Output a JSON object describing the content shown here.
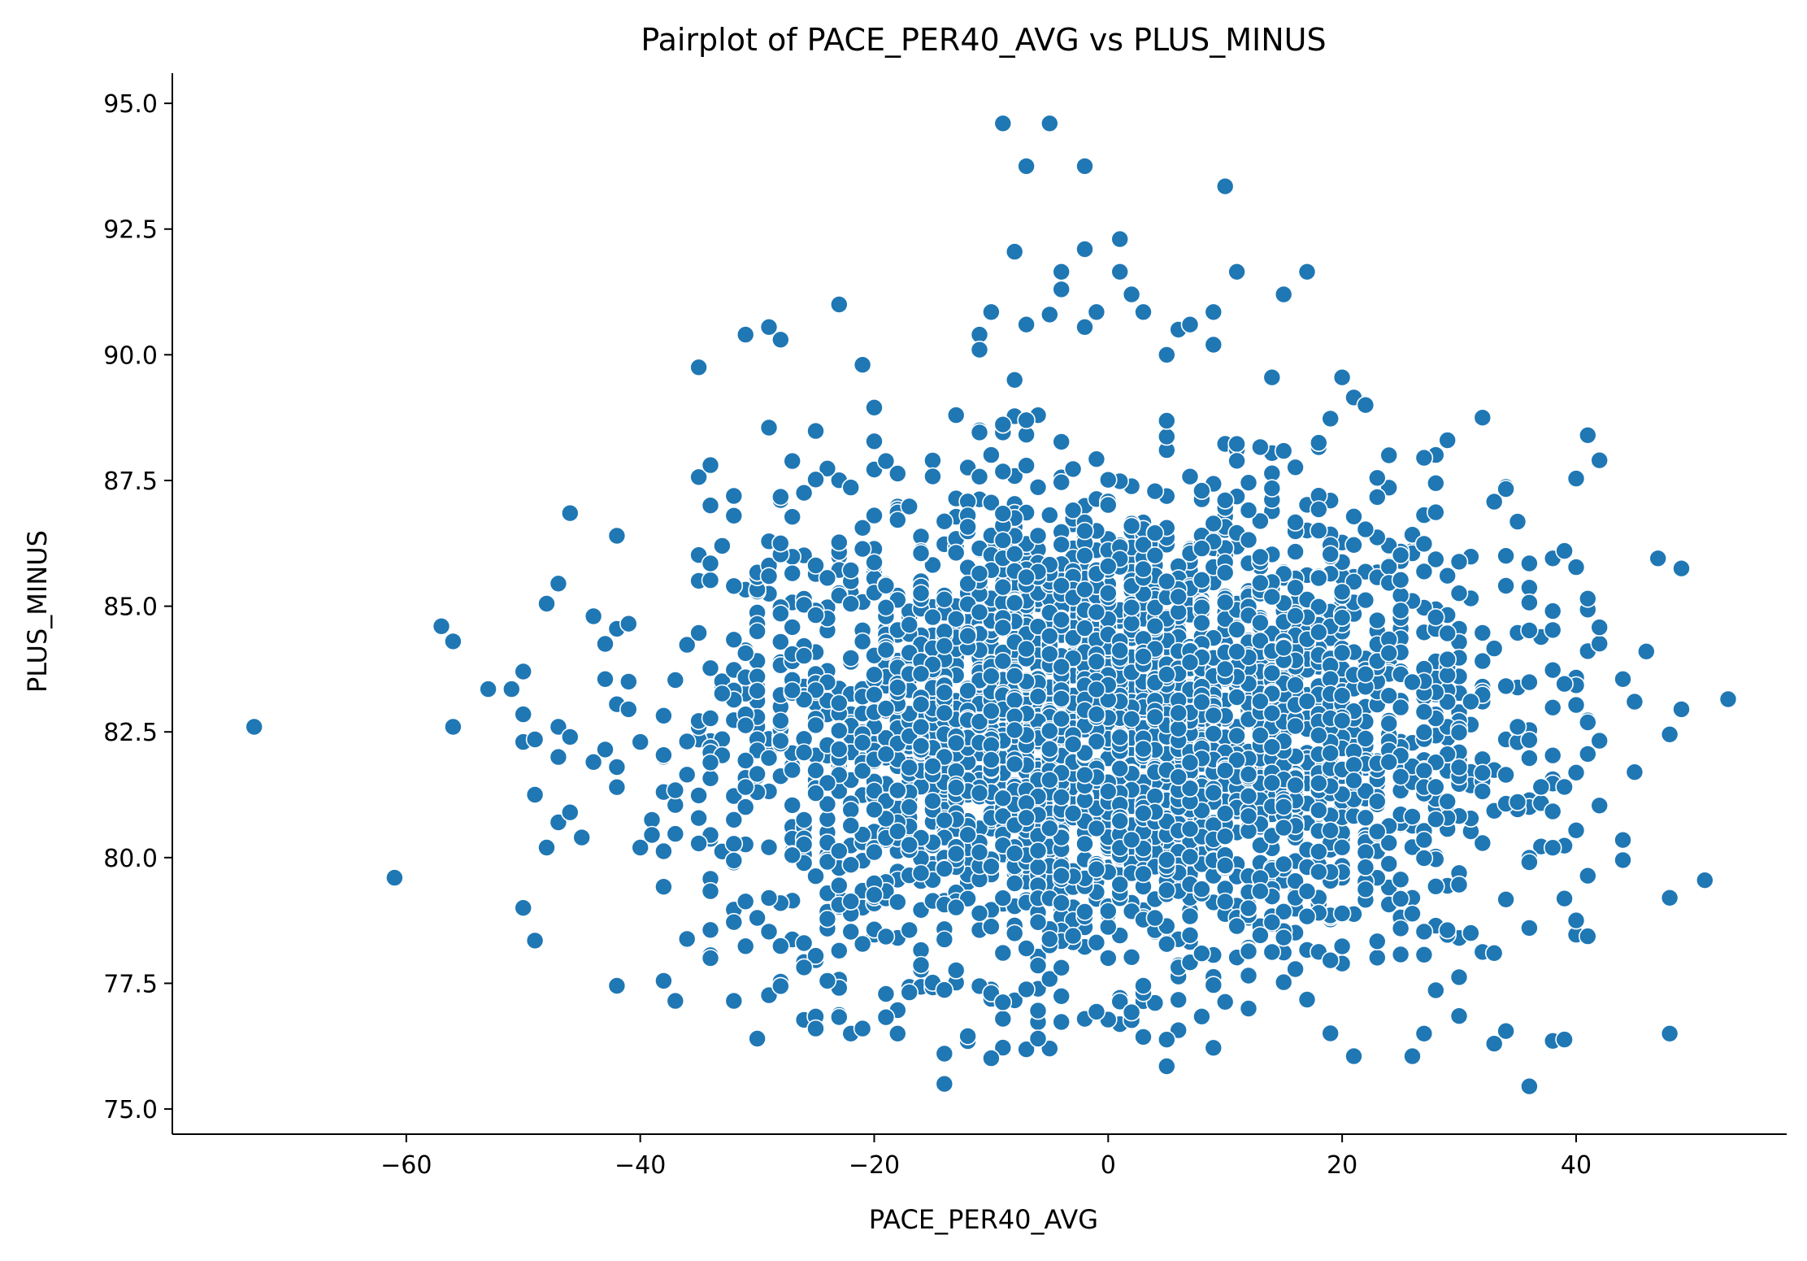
{
  "chart_data": {
    "type": "scatter",
    "title": "Pairplot of PACE_PER40_AVG vs PLUS_MINUS",
    "xlabel": "PACE_PER40_AVG",
    "ylabel": "PLUS_MINUS",
    "xlim": [
      -80,
      58
    ],
    "ylim": [
      74.5,
      95.6
    ],
    "xticks": [
      -60,
      -40,
      -20,
      0,
      20,
      40
    ],
    "xtick_labels": [
      "−60",
      "−40",
      "−20",
      "0",
      "20",
      "40"
    ],
    "yticks": [
      75.0,
      77.5,
      80.0,
      82.5,
      85.0,
      87.5,
      90.0,
      92.5,
      95.0
    ],
    "ytick_labels": [
      "75.0",
      "77.5",
      "80.0",
      "82.5",
      "85.0",
      "87.5",
      "90.0",
      "92.5",
      "95.0"
    ],
    "grid": false,
    "legend": "none",
    "marker_color": "#1f77b4",
    "marker_edge_color": "#ffffff",
    "generated_cloud": {
      "n": 3200,
      "x_mean": 0,
      "x_sd": 17,
      "x_min": -38,
      "x_max": 42,
      "y_mean": 82.5,
      "y_sd": 2.4,
      "y_min": 76,
      "y_max": 89
    },
    "points": [
      [
        -73,
        82.6
      ],
      [
        -61,
        79.6
      ],
      [
        -57,
        84.6
      ],
      [
        -56,
        84.3
      ],
      [
        -56,
        82.6
      ],
      [
        -53,
        83.35
      ],
      [
        -51,
        83.35
      ],
      [
        -50,
        83.7
      ],
      [
        -50,
        82.85
      ],
      [
        -50,
        82.3
      ],
      [
        -50,
        79.0
      ],
      [
        -49,
        82.35
      ],
      [
        -49,
        81.25
      ],
      [
        -49,
        78.35
      ],
      [
        -48,
        85.05
      ],
      [
        -48,
        80.2
      ],
      [
        -47,
        85.45
      ],
      [
        -47,
        82.6
      ],
      [
        -47,
        82.0
      ],
      [
        -47,
        80.7
      ],
      [
        -46,
        86.85
      ],
      [
        -46,
        82.4
      ],
      [
        -46,
        80.9
      ],
      [
        -45,
        80.4
      ],
      [
        -44,
        84.8
      ],
      [
        -44,
        81.9
      ],
      [
        -43,
        84.25
      ],
      [
        -43,
        83.55
      ],
      [
        -43,
        82.15
      ],
      [
        -42,
        86.4
      ],
      [
        -42,
        84.55
      ],
      [
        -42,
        83.05
      ],
      [
        -42,
        81.8
      ],
      [
        -42,
        81.4
      ],
      [
        -42,
        77.45
      ],
      [
        -41,
        84.65
      ],
      [
        -41,
        83.5
      ],
      [
        -41,
        82.95
      ],
      [
        -40,
        82.3
      ],
      [
        -40,
        80.2
      ],
      [
        -39,
        80.75
      ],
      [
        -39,
        80.45
      ],
      [
        -38,
        77.55
      ],
      [
        -37,
        77.15
      ],
      [
        -35,
        89.75
      ],
      [
        -34,
        78.0
      ],
      [
        -33,
        86.2
      ],
      [
        -32,
        86.8
      ],
      [
        -32,
        77.15
      ],
      [
        -31,
        90.4
      ],
      [
        -30,
        76.4
      ],
      [
        -29,
        90.55
      ],
      [
        -29,
        88.55
      ],
      [
        -28,
        90.3
      ],
      [
        -28,
        86.25
      ],
      [
        -26,
        78.3
      ],
      [
        -25,
        76.6
      ],
      [
        -24,
        77.55
      ],
      [
        -23,
        91.0
      ],
      [
        -22,
        76.5
      ],
      [
        -21,
        89.8
      ],
      [
        -21,
        76.6
      ],
      [
        -20,
        88.95
      ],
      [
        -18,
        76.5
      ],
      [
        -14,
        76.1
      ],
      [
        -14,
        75.5
      ],
      [
        -13,
        88.8
      ],
      [
        -12,
        76.45
      ],
      [
        -11,
        90.4
      ],
      [
        -11,
        90.1
      ],
      [
        -10,
        90.85
      ],
      [
        -9,
        94.6
      ],
      [
        -8,
        92.05
      ],
      [
        -8,
        89.5
      ],
      [
        -7,
        93.75
      ],
      [
        -7,
        90.6
      ],
      [
        -6,
        76.4
      ],
      [
        -5,
        94.6
      ],
      [
        -5,
        90.8
      ],
      [
        -4,
        91.65
      ],
      [
        -4,
        91.3
      ],
      [
        -2,
        93.75
      ],
      [
        -2,
        92.1
      ],
      [
        -2,
        90.55
      ],
      [
        -1,
        90.85
      ],
      [
        1,
        92.3
      ],
      [
        1,
        91.65
      ],
      [
        2,
        91.2
      ],
      [
        3,
        90.85
      ],
      [
        5,
        90.0
      ],
      [
        6,
        90.5
      ],
      [
        7,
        90.6
      ],
      [
        9,
        90.85
      ],
      [
        9,
        90.2
      ],
      [
        10,
        93.35
      ],
      [
        11,
        91.65
      ],
      [
        14,
        89.55
      ],
      [
        15,
        91.2
      ],
      [
        17,
        91.65
      ],
      [
        18,
        88.25
      ],
      [
        20,
        89.55
      ],
      [
        21,
        89.15
      ],
      [
        22,
        89.0
      ],
      [
        24,
        88.0
      ],
      [
        27,
        87.95
      ],
      [
        29,
        88.3
      ],
      [
        32,
        88.75
      ],
      [
        34,
        86.0
      ],
      [
        36,
        85.85
      ],
      [
        38,
        85.95
      ],
      [
        39,
        86.1
      ],
      [
        41,
        88.4
      ],
      [
        41,
        85.15
      ],
      [
        42,
        87.9
      ],
      [
        44,
        83.55
      ],
      [
        45,
        83.1
      ],
      [
        46,
        84.1
      ],
      [
        47,
        85.95
      ],
      [
        49,
        85.75
      ],
      [
        53,
        83.15
      ],
      [
        44,
        80.35
      ],
      [
        44,
        79.95
      ],
      [
        45,
        81.7
      ],
      [
        48,
        82.45
      ],
      [
        49,
        82.95
      ],
      [
        48,
        79.2
      ],
      [
        51,
        79.55
      ],
      [
        40,
        78.75
      ],
      [
        48,
        76.5
      ],
      [
        36,
        75.45
      ],
      [
        33,
        76.3
      ],
      [
        34,
        76.55
      ],
      [
        31,
        78.5
      ],
      [
        30,
        76.85
      ],
      [
        27,
        76.5
      ],
      [
        26,
        76.05
      ],
      [
        21,
        76.05
      ],
      [
        5,
        75.85
      ],
      [
        36,
        78.6
      ],
      [
        33,
        78.1
      ]
    ]
  }
}
